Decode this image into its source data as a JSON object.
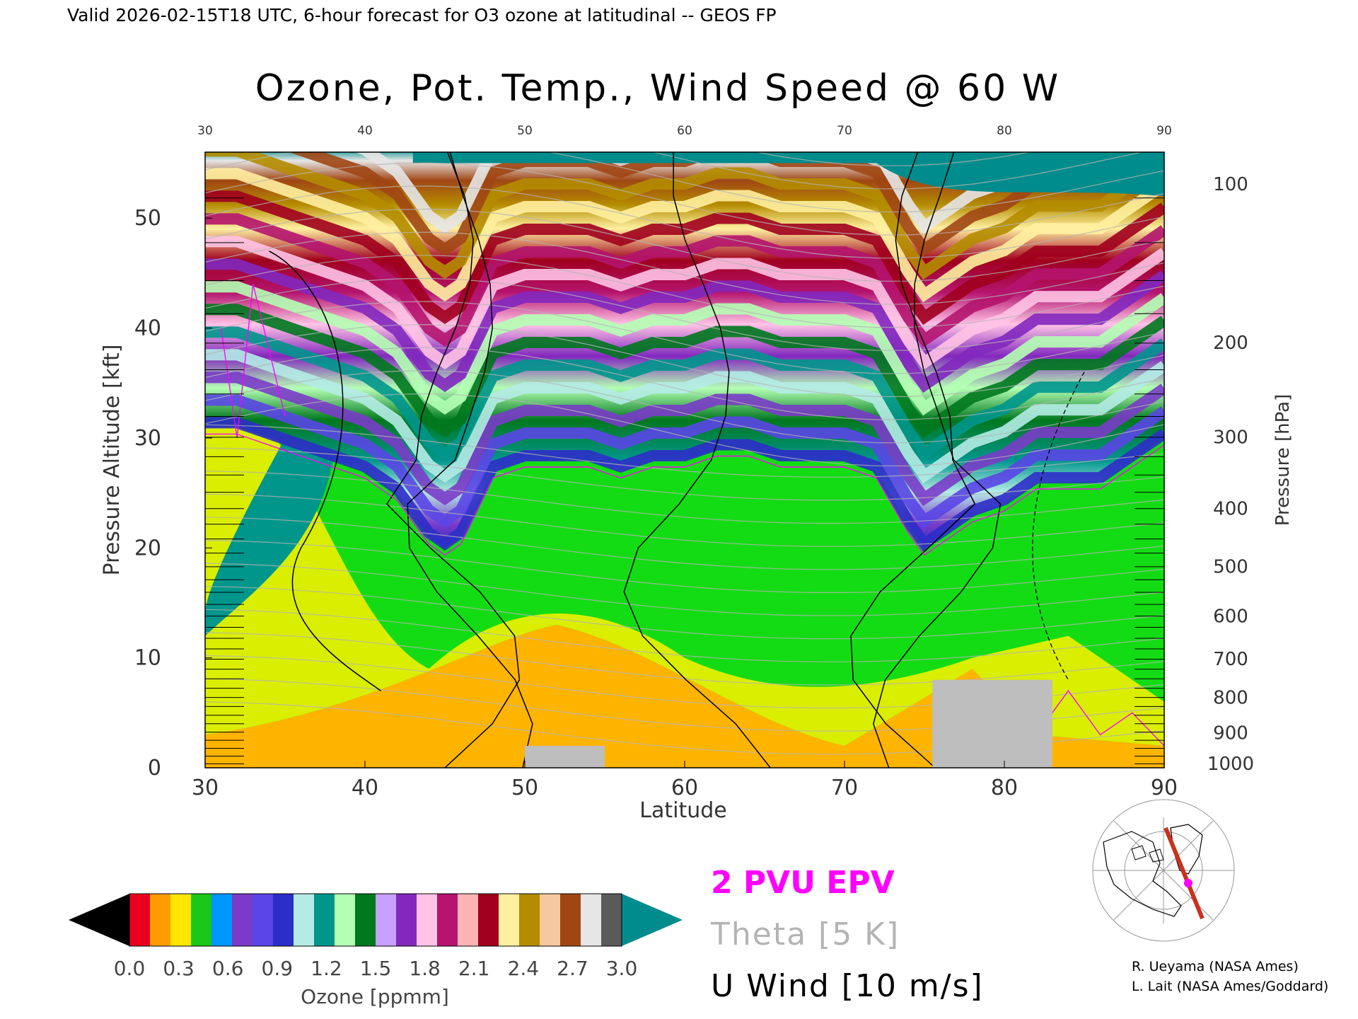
{
  "header": {
    "valid_line": "Valid 2026-02-15T18 UTC, 6-hour forecast for O3 ozone at latitudinal -- GEOS FP"
  },
  "chart_data": {
    "type": "heatmap",
    "title": "Ozone, Pot. Temp., Wind Speed @ 60 W",
    "xlabel": "Latitude",
    "ylabel": "Pressure Altitude [kft]",
    "y2label": "Pressure [hPa]",
    "xlim": [
      30,
      90
    ],
    "ylim": [
      0,
      56
    ],
    "x_ticks": [
      "30",
      "40",
      "50",
      "60",
      "70",
      "80",
      "90"
    ],
    "top_x_ticks": [
      "30",
      "40",
      "50",
      "60",
      "70",
      "80",
      "90"
    ],
    "y_ticks": [
      "0",
      "10",
      "20",
      "30",
      "40",
      "50"
    ],
    "y_tick_values": [
      0,
      10,
      20,
      30,
      40,
      50
    ],
    "pressure_ticks": [
      "100",
      "200",
      "300",
      "400",
      "500",
      "600",
      "700",
      "800",
      "900",
      "1000"
    ],
    "pressure_tick_altitudes_kft": [
      53.1,
      38.7,
      30.1,
      23.6,
      18.3,
      13.8,
      9.9,
      6.4,
      3.2,
      0.4
    ],
    "tropopause_profile": {
      "latitude": [
        30,
        32,
        34,
        36,
        38,
        40,
        42,
        44,
        45,
        46,
        48,
        50,
        52,
        54,
        56,
        58,
        60,
        62,
        64,
        66,
        68,
        70,
        72,
        74,
        75,
        76,
        78,
        80,
        82,
        84,
        86,
        88,
        90
      ],
      "altitude_kft": [
        31,
        31,
        30,
        29,
        28,
        27,
        25,
        21,
        20,
        21,
        27,
        28,
        28,
        28,
        27,
        28,
        28,
        29,
        29,
        28,
        28,
        28,
        27,
        22,
        20,
        21,
        23,
        24,
        26,
        26,
        26,
        28,
        30
      ]
    },
    "topography": [
      {
        "lat_from": 50,
        "lat_to": 55,
        "top_kft": 2
      },
      {
        "lat_from": 75.5,
        "lat_to": 83,
        "top_kft": 8
      }
    ],
    "colorbar": {
      "label": "Ozone [ppmm]",
      "ticks": [
        "0.0",
        "0.3",
        "0.6",
        "0.9",
        "1.2",
        "1.5",
        "1.8",
        "2.1",
        "2.4",
        "2.7",
        "3.0"
      ],
      "min": 0.0,
      "max": 3.0,
      "colors": [
        "#e8001e",
        "#ff9a00",
        "#ffe600",
        "#19c819",
        "#0096ff",
        "#7a3cc8",
        "#5a46e6",
        "#2d2dc8",
        "#b4ebe6",
        "#00968c",
        "#b4ffb4",
        "#00781e",
        "#c8a0ff",
        "#8228be",
        "#ffc3e6",
        "#b4146e",
        "#ffb4b4",
        "#a0001e",
        "#fff0a0",
        "#b48c00",
        "#f5c8a0",
        "#a04614",
        "#e6e6e6",
        "#5a5a5a"
      ]
    },
    "legend": [
      {
        "label": "2 PVU EPV",
        "color": "#ff00ff"
      },
      {
        "label": "Theta [5 K]",
        "color": "#b4b4b4"
      },
      {
        "label": "U Wind [10 m/s]",
        "color": "#000000"
      }
    ],
    "colors": {
      "stratosphere_top": "#008c8c",
      "troposphere_green": "#14dc14",
      "boundary_yellow": "#f0f000",
      "surface_orange": "#ffb400",
      "topography": "#bebebe",
      "epv": "#ff00ff",
      "theta": "#b4b4b4",
      "wind": "#000000"
    }
  },
  "inset_map": {
    "section_color": "#c8321e",
    "marker_color": "#ff00ff"
  },
  "credits": [
    "R. Ueyama (NASA Ames)",
    "L. Lait (NASA Ames/Goddard)"
  ]
}
